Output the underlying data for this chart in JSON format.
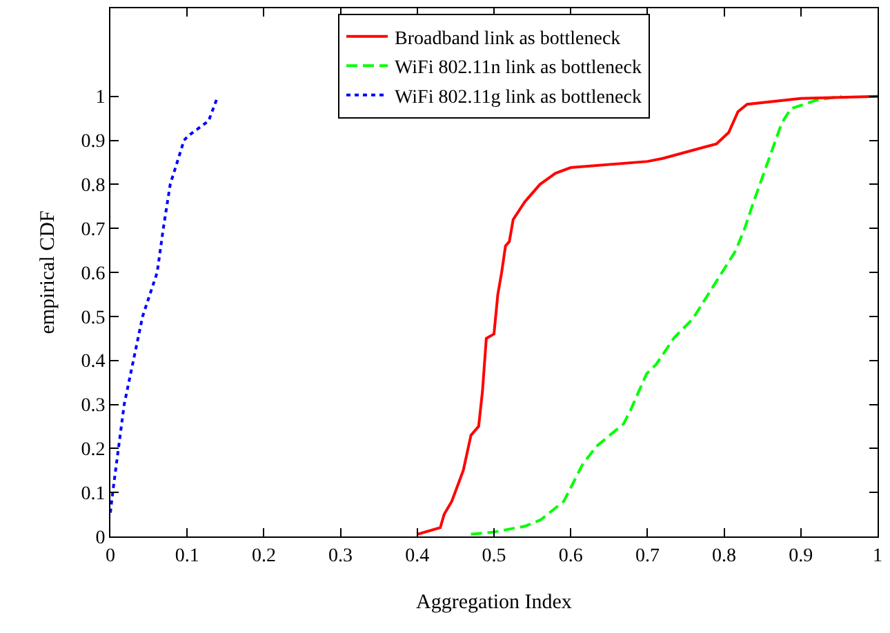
{
  "chart_data": {
    "type": "line",
    "xlabel": "Aggregation Index",
    "ylabel": "empirical CDF",
    "xlim": [
      0,
      1
    ],
    "xticks": [
      0,
      0.1,
      0.2,
      0.3,
      0.4,
      0.5,
      0.6,
      0.7,
      0.8,
      0.9,
      1
    ],
    "ylim": [
      0,
      1.2
    ],
    "yticks": [
      0,
      0.1,
      0.2,
      0.3,
      0.4,
      0.5,
      0.6,
      0.7,
      0.8,
      0.9,
      1
    ],
    "legend": "top",
    "marker": "none",
    "series": [
      {
        "name": "Broadband link as bottleneck",
        "color": "#ff0000",
        "line_style": "solid",
        "x": [
          0.4,
          0.43,
          0.435,
          0.445,
          0.46,
          0.47,
          0.48,
          0.485,
          0.49,
          0.5,
          0.505,
          0.51,
          0.515,
          0.52,
          0.525,
          0.54,
          0.56,
          0.58,
          0.6,
          0.7,
          0.72,
          0.79,
          0.806,
          0.818,
          0.83,
          0.9,
          1.0
        ],
        "values": [
          0.005,
          0.02,
          0.05,
          0.08,
          0.15,
          0.23,
          0.25,
          0.33,
          0.45,
          0.46,
          0.55,
          0.6,
          0.66,
          0.67,
          0.72,
          0.76,
          0.8,
          0.825,
          0.838,
          0.852,
          0.859,
          0.892,
          0.918,
          0.965,
          0.982,
          0.995,
          1.0
        ]
      },
      {
        "name": "WiFi 802.11n link as bottleneck",
        "color": "#00ff00",
        "line_style": "dashed",
        "x": [
          0.47,
          0.5,
          0.53,
          0.54,
          0.561,
          0.591,
          0.615,
          0.633,
          0.669,
          0.678,
          0.699,
          0.711,
          0.735,
          0.759,
          0.789,
          0.815,
          0.827,
          0.839,
          0.857,
          0.875,
          0.887,
          0.92,
          0.953
        ],
        "values": [
          0.005,
          0.01,
          0.02,
          0.023,
          0.038,
          0.08,
          0.162,
          0.204,
          0.256,
          0.287,
          0.37,
          0.39,
          0.452,
          0.494,
          0.577,
          0.649,
          0.701,
          0.763,
          0.851,
          0.939,
          0.972,
          0.991,
          1.0
        ]
      },
      {
        "name": "WiFi 802.11g link as bottleneck",
        "color": "#0000ff",
        "line_style": "dotted",
        "x": [
          0.0,
          0.003,
          0.018,
          0.03,
          0.042,
          0.061,
          0.069,
          0.078,
          0.096,
          0.102,
          0.128,
          0.14
        ],
        "values": [
          0.054,
          0.1,
          0.3,
          0.4,
          0.5,
          0.6,
          0.7,
          0.8,
          0.9,
          0.911,
          0.944,
          1.0
        ]
      }
    ]
  }
}
